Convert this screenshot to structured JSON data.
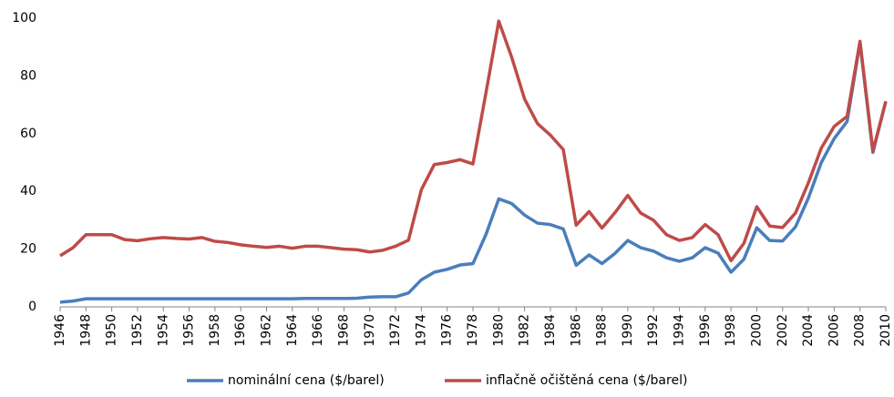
{
  "chart_data": {
    "type": "line",
    "x": [
      1946,
      1947,
      1948,
      1949,
      1950,
      1951,
      1952,
      1953,
      1954,
      1955,
      1956,
      1957,
      1958,
      1959,
      1960,
      1961,
      1962,
      1963,
      1964,
      1965,
      1966,
      1967,
      1968,
      1969,
      1970,
      1971,
      1972,
      1973,
      1974,
      1975,
      1976,
      1977,
      1978,
      1979,
      1980,
      1981,
      1982,
      1983,
      1984,
      1985,
      1986,
      1987,
      1988,
      1989,
      1990,
      1991,
      1992,
      1993,
      1994,
      1995,
      1996,
      1997,
      1998,
      1999,
      2000,
      2001,
      2002,
      2003,
      2004,
      2005,
      2006,
      2007,
      2008,
      2009,
      2010
    ],
    "series": [
      {
        "name": "nominální cena ($/barel)",
        "color": "#4a7ebb",
        "values": [
          1.6,
          2.0,
          2.8,
          2.8,
          2.8,
          2.8,
          2.8,
          2.8,
          2.8,
          2.8,
          2.8,
          2.8,
          2.8,
          2.8,
          2.8,
          2.8,
          2.8,
          2.8,
          2.8,
          2.9,
          2.9,
          2.9,
          2.9,
          3.0,
          3.4,
          3.5,
          3.5,
          4.8,
          9.4,
          12,
          13,
          14.5,
          15,
          25,
          37.4,
          35.8,
          31.8,
          29,
          28.5,
          27,
          14.4,
          18,
          15,
          18.5,
          23,
          20.5,
          19.3,
          17,
          15.8,
          17,
          20.5,
          18.6,
          12,
          16.5,
          27.4,
          23,
          22.8,
          27.7,
          37.7,
          50,
          58.3,
          64.2,
          91.5,
          53.5,
          71.2
        ]
      },
      {
        "name": "inflačně očištěná cena ($/barel)",
        "color": "#be4b48",
        "values": [
          17.7,
          20.5,
          25,
          25,
          25,
          23.3,
          22.9,
          23.6,
          24,
          23.7,
          23.5,
          24,
          22.7,
          22.3,
          21.5,
          21,
          20.6,
          21,
          20.3,
          21,
          21,
          20.5,
          20,
          19.8,
          19,
          19.6,
          21,
          23.1,
          40.6,
          49.3,
          50,
          51,
          49.5,
          74,
          99,
          86.5,
          72,
          63.5,
          59.5,
          54.5,
          28.3,
          33,
          27.3,
          32.6,
          38.6,
          32.5,
          30,
          25,
          23,
          24,
          28.5,
          25,
          16,
          22,
          34.7,
          28,
          27.5,
          32.5,
          43,
          55,
          62.5,
          66,
          92,
          54,
          71.2
        ]
      }
    ],
    "xlim": [
      1946,
      2010
    ],
    "xticks": [
      1946,
      1948,
      1950,
      1952,
      1954,
      1956,
      1958,
      1960,
      1962,
      1964,
      1966,
      1968,
      1970,
      1972,
      1974,
      1976,
      1978,
      1980,
      1982,
      1984,
      1986,
      1988,
      1990,
      1992,
      1994,
      1996,
      1998,
      2000,
      2002,
      2004,
      2006,
      2008,
      2010
    ],
    "ylim": [
      0,
      100
    ],
    "yticks": [
      0,
      20,
      40,
      60,
      80,
      100
    ],
    "grid": false,
    "legend": "bottom"
  }
}
